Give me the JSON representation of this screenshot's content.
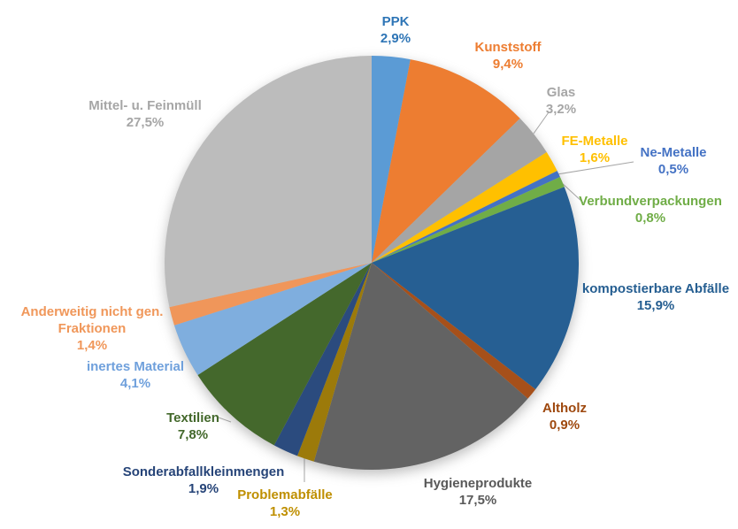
{
  "figure": {
    "background_color": "#FFFFFF",
    "leader_line_color": "#A6A6A6"
  },
  "chart_data": {
    "type": "pie",
    "title": "",
    "unit": "%",
    "start_angle_deg": 0,
    "direction": "clockwise",
    "legend": "none",
    "label_style": "category name + percentage, bold, colored per slice, outside pie",
    "segments": [
      {
        "id": "ppk",
        "label": "PPK",
        "value": 2.9,
        "pct": "2,9%",
        "color": "#5B9BD5",
        "label_color": "#2E75B6"
      },
      {
        "id": "kunststoff",
        "label": "Kunststoff",
        "value": 9.4,
        "pct": "9,4%",
        "color": "#ED7D31",
        "label_color": "#ED7D31"
      },
      {
        "id": "glas",
        "label": "Glas",
        "value": 3.2,
        "pct": "3,2%",
        "color": "#A5A5A5",
        "label_color": "#A6A6A6"
      },
      {
        "id": "fe-metalle",
        "label": "FE-Metalle",
        "value": 1.6,
        "pct": "1,6%",
        "color": "#FFC000",
        "label_color": "#FFC000"
      },
      {
        "id": "ne-metalle",
        "label": "Ne-Metalle",
        "value": 0.5,
        "pct": "0,5%",
        "color": "#4472C4",
        "label_color": "#4472C4"
      },
      {
        "id": "verbundverpackungen",
        "label": "Verbundverpackungen",
        "value": 0.8,
        "pct": "0,8%",
        "color": "#70AD47",
        "label_color": "#70AD47"
      },
      {
        "id": "kompostierbare-abfaelle",
        "label": "kompostierbare Abfälle",
        "value": 15.9,
        "pct": "15,9%",
        "color": "#265F93",
        "label_color": "#255E91"
      },
      {
        "id": "altholz",
        "label": "Altholz",
        "value": 0.9,
        "pct": "0,9%",
        "color": "#A6501A",
        "label_color": "#9E480E"
      },
      {
        "id": "hygieneprodukte",
        "label": "Hygieneprodukte",
        "value": 17.5,
        "pct": "17,5%",
        "color": "#636363",
        "label_color": "#595959"
      },
      {
        "id": "problemabfaelle",
        "label": "Problemabfälle",
        "value": 1.3,
        "pct": "1,3%",
        "color": "#9C7A0A",
        "label_color": "#BF8F00"
      },
      {
        "id": "sonderabfallkleinmengen",
        "label": "Sonderabfallkleinmengen",
        "value": 1.9,
        "pct": "1,9%",
        "color": "#2B4B7E",
        "label_color": "#264478"
      },
      {
        "id": "textilien",
        "label": "Textilien",
        "value": 7.8,
        "pct": "7,8%",
        "color": "#44682C",
        "label_color": "#43682B"
      },
      {
        "id": "inertes-material",
        "label": "inertes Material",
        "value": 4.1,
        "pct": "4,1%",
        "color": "#7FAEDE",
        "label_color": "#6FA0DC"
      },
      {
        "id": "anderweitig",
        "label": "Anderweitig nicht gen. Fraktionen",
        "value": 1.4,
        "pct": "1,4%",
        "color": "#F0965A",
        "label_color": "#F0975A"
      },
      {
        "id": "mittel-feinmuell",
        "label": "Mittel- u. Feinmüll",
        "value": 27.5,
        "pct": "27,5%",
        "color": "#BCBCBC",
        "label_color": "#A6A6A6"
      }
    ]
  }
}
